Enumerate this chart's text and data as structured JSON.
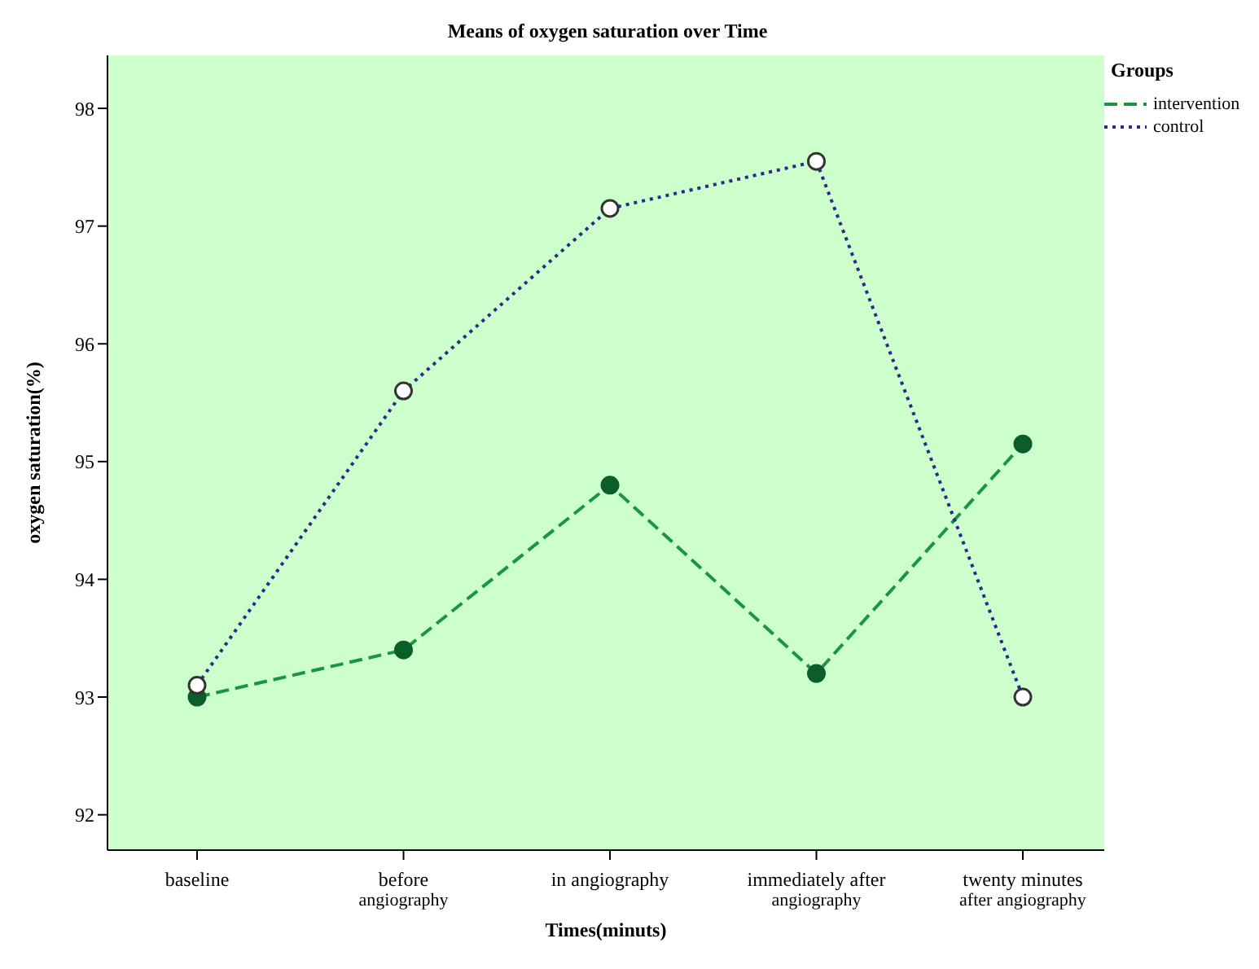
{
  "chart_data": {
    "type": "line",
    "title": "Means of oxygen saturation over Time",
    "xlabel": "Times(minuts)",
    "ylabel": "oxygen saturation(%)",
    "legend_title": "Groups",
    "categories": [
      "baseline",
      "before\nangiography",
      "in angiography",
      "immediately after\nangiography",
      "twenty minutes\nafter angiography"
    ],
    "series": [
      {
        "name": "intervention",
        "color": "#1a9641",
        "values": [
          93.0,
          93.4,
          94.8,
          93.2,
          95.15
        ],
        "line_style": "dashed"
      },
      {
        "name": "control",
        "color": "#2b2b8c",
        "values": [
          93.1,
          95.6,
          97.15,
          97.55,
          93.0
        ],
        "line_style": "dotted"
      }
    ],
    "ylim": [
      91.7,
      98.45
    ],
    "yticks": [
      92,
      93,
      94,
      95,
      96,
      97,
      98
    ],
    "legend": "top right",
    "marker": "circle"
  }
}
